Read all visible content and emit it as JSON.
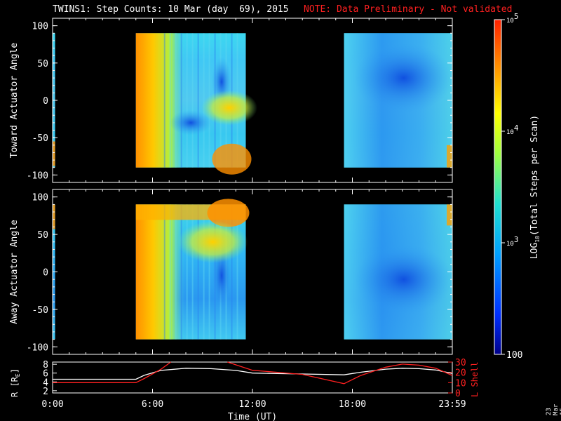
{
  "title": {
    "main": "TWINS1: Step Counts: 10 Mar (day  69), 2015",
    "note": "NOTE: Data Preliminary - Not validated",
    "note_color": "#ff2020"
  },
  "stamp": "23 Mar 15",
  "chart_data": [
    {
      "type": "heatmap",
      "name": "toward",
      "ylabel": "Toward Actuator Angle",
      "ylim": [
        -110,
        110
      ],
      "yticks": [
        -100,
        -50,
        0,
        50,
        100
      ],
      "xlim": [
        0,
        24
      ],
      "data_blocks_hours": [
        [
          0.0,
          0.15
        ],
        [
          5.0,
          11.6
        ],
        [
          17.5,
          24.0
        ]
      ],
      "angle_range": [
        -90,
        90
      ]
    },
    {
      "type": "heatmap",
      "name": "away",
      "ylabel": "Away Actuator Angle",
      "ylim": [
        -110,
        110
      ],
      "yticks": [
        -100,
        -50,
        0,
        50,
        100
      ],
      "xlim": [
        0,
        24
      ],
      "data_blocks_hours": [
        [
          0.0,
          0.15
        ],
        [
          5.0,
          11.6
        ],
        [
          17.5,
          24.0
        ]
      ],
      "angle_range": [
        -90,
        90
      ]
    },
    {
      "type": "line",
      "name": "orbit",
      "xlabel": "Time (UT)",
      "xticks": [
        "0:00",
        "6:00",
        "12:00",
        "18:00",
        "23:59"
      ],
      "xtick_hours": [
        0,
        6,
        12,
        18,
        24
      ],
      "left_axis": {
        "label": "R [RE]",
        "label_main": "R [R",
        "label_sub": "E",
        "label_end": "]",
        "ylim": [
          1.5,
          8.5
        ],
        "ticks": [
          2,
          4,
          6,
          8
        ],
        "color": "#ffffff"
      },
      "right_axis": {
        "label": "L Shell",
        "ylim": [
          0,
          30
        ],
        "ticks": [
          0,
          10,
          20,
          30
        ],
        "color": "#ff2020"
      },
      "series": [
        {
          "name": "R",
          "axis": "left",
          "color": "#ffffff",
          "x": [
            0,
            5,
            5.5,
            6.5,
            8,
            9.5,
            11,
            12,
            15,
            17.5,
            18.5,
            20,
            21,
            22,
            23,
            24
          ],
          "y": [
            4.6,
            4.6,
            5.5,
            6.6,
            7.1,
            7.0,
            6.6,
            6.0,
            5.8,
            5.6,
            6.2,
            6.9,
            7.1,
            7.0,
            6.7,
            5.9
          ]
        },
        {
          "name": "L Shell",
          "axis": "right",
          "color": "#ff2020",
          "x": [
            0,
            5,
            5.5,
            6.5,
            7.1,
            null,
            10.5,
            12,
            15,
            17.5,
            18.5,
            20,
            21,
            22,
            23,
            24
          ],
          "y": [
            10.0,
            10.0,
            14.0,
            23.0,
            30.0,
            null,
            30.0,
            22.0,
            18.0,
            9.0,
            17.0,
            25.0,
            28.0,
            27.0,
            24.0,
            17.0
          ]
        }
      ]
    }
  ],
  "colorbar": {
    "label": "LOG10(Total Steps per Scan)",
    "label_main": "LOG",
    "label_sub": "10",
    "label_rest": "(Total Steps per Scan)",
    "range": [
      100,
      100000
    ],
    "ticks": [
      "100",
      "10^3",
      "10^4",
      "10^5"
    ],
    "tick_base": [
      "100",
      "10",
      "10",
      "10"
    ],
    "tick_exp": [
      "",
      "3",
      "4",
      "5"
    ]
  }
}
